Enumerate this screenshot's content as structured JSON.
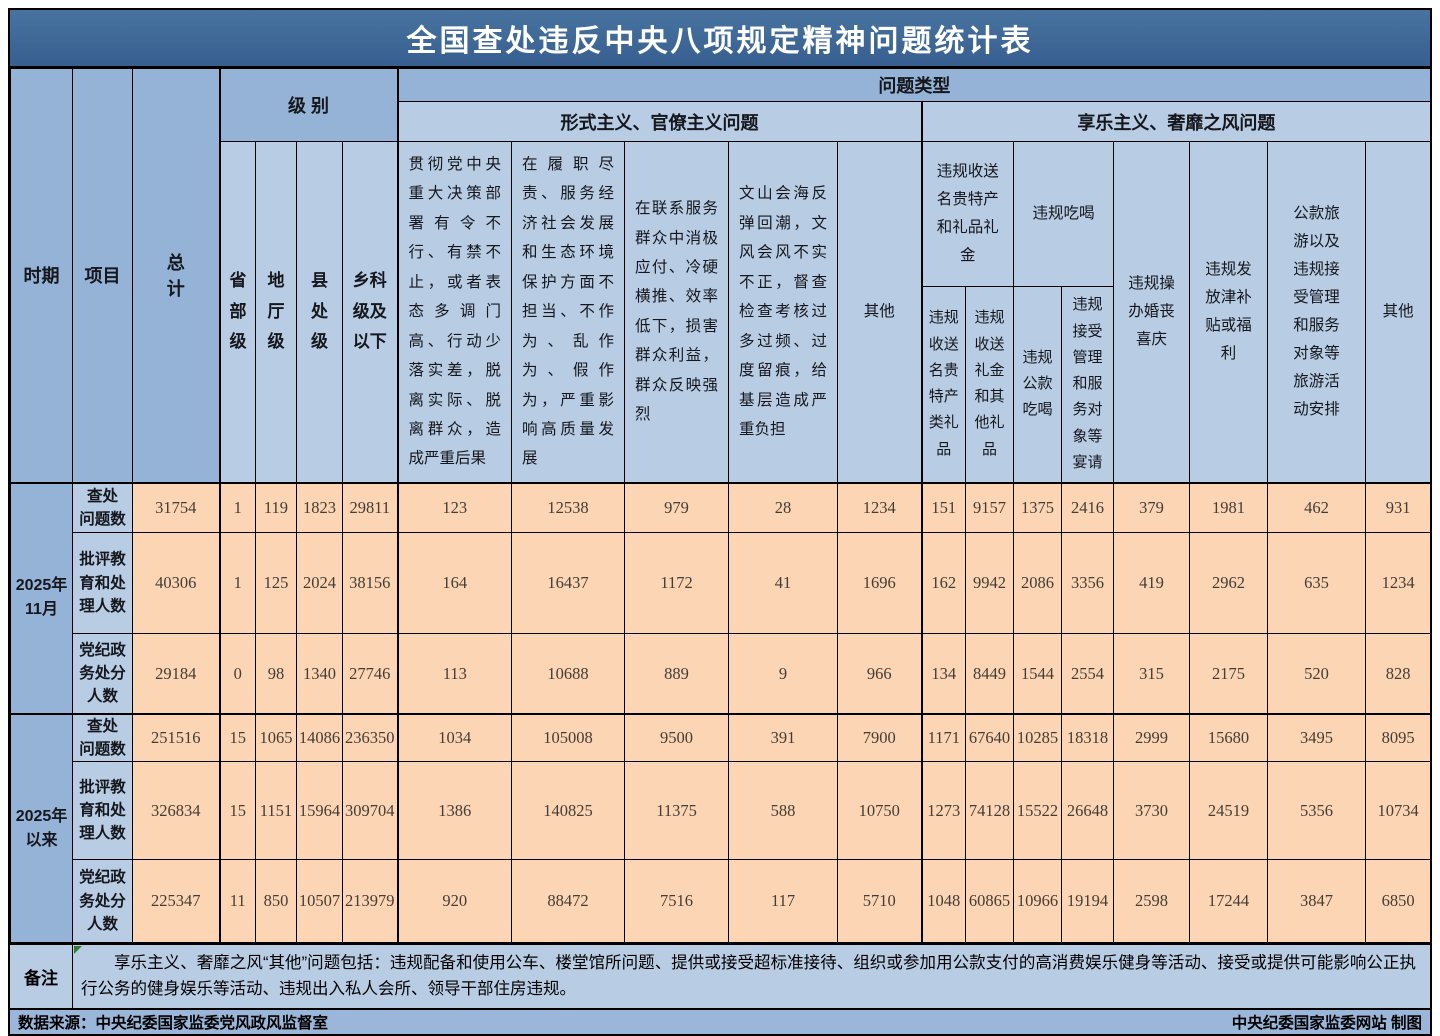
{
  "title": "全国查处违反中央八项规定精神问题统计表",
  "colors": {
    "title_bg": "#3d6998",
    "header_medium": "#95b3d7",
    "header_light": "#b8cce4",
    "data_cell_bg": "#fcd5b4",
    "border": "#000000",
    "title_text": "#ffffff",
    "number_text": "#433d36",
    "note_corner_flag": "#2f7d32"
  },
  "header": {
    "period": "时期",
    "item": "项目",
    "total_display": "总\n计",
    "level_group": "级 别",
    "problem_type_group": "问题类型",
    "levels": [
      "省部级",
      "地厅级",
      "县处级",
      "乡科级及以下"
    ],
    "formalism_group": "形式主义、官僚主义问题",
    "hedonism_group": "享乐主义、奢靡之风问题",
    "formalism_cols": [
      "贯彻党中央重大决策部署有令不行、有禁不止，或者表态多调门高、行动少落实差，脱离实际、脱离群众，造成严重后果",
      "在履职尽责、服务经济社会发展和生态环境保护方面不担当、不作为、乱作为、假作为，严重影响高质量发展",
      "在联系服务群众中消极应付、冷硬横推、效率低下，损害群众利益，群众反映强烈",
      "文山会海反弹回潮，文风会风不实不正，督查检查考核过多过频、过度留痕，给基层造成严重负担",
      "其他"
    ],
    "gifts_group": "违规收送名贵特产和礼品礼金",
    "gifts_sub": [
      "违规收送名贵特产类礼品",
      "违规收送礼金和其他礼品"
    ],
    "dining_group": "违规吃喝",
    "dining_sub": [
      "违规公款吃喝",
      "违规接受管理和服务对象等宴请"
    ],
    "wedding": "违规操办婚丧喜庆",
    "allowance": "违规发放津补贴或福利",
    "travel": "公款旅游以及违规接受管理和服务对象等旅游活动安排",
    "hedonism_other": "其他"
  },
  "chart_data": {
    "type": "table",
    "title": "全国查处违反中央八项规定精神问题统计表",
    "columns": [
      "总计",
      "省部级",
      "地厅级",
      "县处级",
      "乡科级及以下",
      "贯彻党中央重大决策部署有令不行、有禁不止，或者表态多调门高、行动少落实差，脱离实际、脱离群众，造成严重后果",
      "在履职尽责、服务经济社会发展和生态环境保护方面不担当、不作为、乱作为、假作为，严重影响高质量发展",
      "在联系服务群众中消极应付、冷硬横推、效率低下，损害群众利益，群众反映强烈",
      "文山会海反弹回潮，文风会风不实不正，督查检查考核过多过频、过度留痕，给基层造成严重负担",
      "其他",
      "违规收送名贵特产类礼品",
      "违规收送礼金和其他礼品",
      "违规公款吃喝",
      "违规接受管理和服务对象等宴请",
      "违规操办婚丧喜庆",
      "违规发放津补贴或福利",
      "公款旅游以及违规接受管理和服务对象等旅游活动安排",
      "其他"
    ],
    "groups": [
      {
        "period": "2025年11月",
        "period_display": "2025年\n11月",
        "rows": [
          {
            "label": "查处问题数",
            "label_display": "查处\n问题数",
            "values": [
              31754,
              1,
              119,
              1823,
              29811,
              123,
              12538,
              979,
              28,
              1234,
              151,
              9157,
              1375,
              2416,
              379,
              1981,
              462,
              931
            ]
          },
          {
            "label": "批评教育和处理人数",
            "label_display": "批评教\n育和处\n理人数",
            "values": [
              40306,
              1,
              125,
              2024,
              38156,
              164,
              16437,
              1172,
              41,
              1696,
              162,
              9942,
              2086,
              3356,
              419,
              2962,
              635,
              1234
            ]
          },
          {
            "label": "党纪政务处分人数",
            "label_display": "党纪政\n务处分\n人数",
            "values": [
              29184,
              0,
              98,
              1340,
              27746,
              113,
              10688,
              889,
              9,
              966,
              134,
              8449,
              1544,
              2554,
              315,
              2175,
              520,
              828
            ]
          }
        ]
      },
      {
        "period": "2025年以来",
        "period_display": "2025年\n以来",
        "rows": [
          {
            "label": "查处问题数",
            "label_display": "查处\n问题数",
            "values": [
              251516,
              15,
              1065,
              14086,
              236350,
              1034,
              105008,
              9500,
              391,
              7900,
              1171,
              67640,
              10285,
              18318,
              2999,
              15680,
              3495,
              8095
            ]
          },
          {
            "label": "批评教育和处理人数",
            "label_display": "批评教\n育和处\n理人数",
            "values": [
              326834,
              15,
              1151,
              15964,
              309704,
              1386,
              140825,
              11375,
              588,
              10750,
              1273,
              74128,
              15522,
              26648,
              3730,
              24519,
              5356,
              10734
            ]
          },
          {
            "label": "党纪政务处分人数",
            "label_display": "党纪政\n务处分\n人数",
            "values": [
              225347,
              11,
              850,
              10507,
              213979,
              920,
              88472,
              7516,
              117,
              5710,
              1048,
              60865,
              10966,
              19194,
              2598,
              17244,
              3847,
              6850
            ]
          }
        ]
      }
    ]
  },
  "footer": {
    "note_label": "备注",
    "note_text": "享乐主义、奢靡之风“其他”问题包括：违规配备和使用公车、楼堂馆所问题、提供或接受超标准接待、组织或参加用公款支付的高消费娱乐健身等活动、接受或提供可能影响公正执行公务的健身娱乐等活动、违规出入私人会所、领导干部住房违规。",
    "source_left": "数据来源：中央纪委国家监委党风政风监督室",
    "source_right": "中央纪委国家监委网站 制图"
  }
}
